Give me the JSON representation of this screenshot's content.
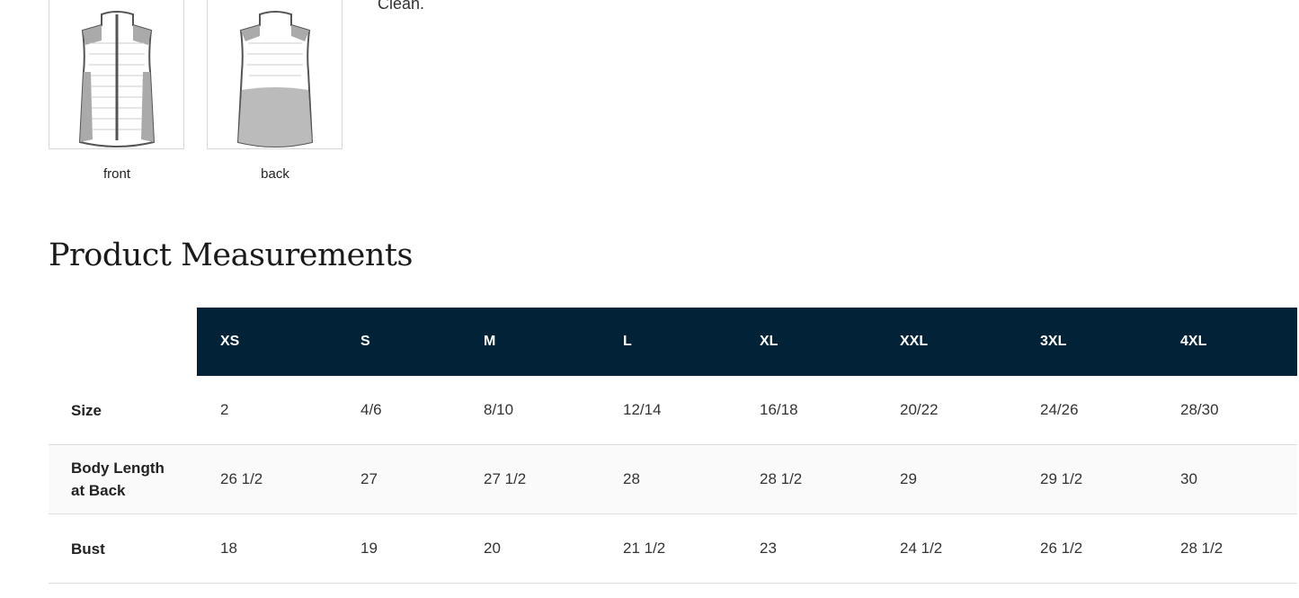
{
  "description_tail": "Clean.",
  "images": [
    {
      "caption": "front",
      "icon": "vest-front-drawing"
    },
    {
      "caption": "back",
      "icon": "vest-back-drawing"
    }
  ],
  "section_title": "Product Measurements",
  "colors": {
    "header_bg": "#022337",
    "header_text": "#ffffff"
  },
  "table": {
    "columns": [
      "XS",
      "S",
      "M",
      "L",
      "XL",
      "XXL",
      "3XL",
      "4XL"
    ],
    "rows": [
      {
        "label": "Size",
        "values": [
          "2",
          "4/6",
          "8/10",
          "12/14",
          "16/18",
          "20/22",
          "24/26",
          "28/30"
        ]
      },
      {
        "label": "Body Length at Back",
        "values": [
          "26 1/2",
          "27",
          "27 1/2",
          "28",
          "28 1/2",
          "29",
          "29 1/2",
          "30"
        ]
      },
      {
        "label": "Bust",
        "values": [
          "18",
          "19",
          "20",
          "21 1/2",
          "23",
          "24 1/2",
          "26 1/2",
          "28 1/2"
        ]
      }
    ]
  }
}
